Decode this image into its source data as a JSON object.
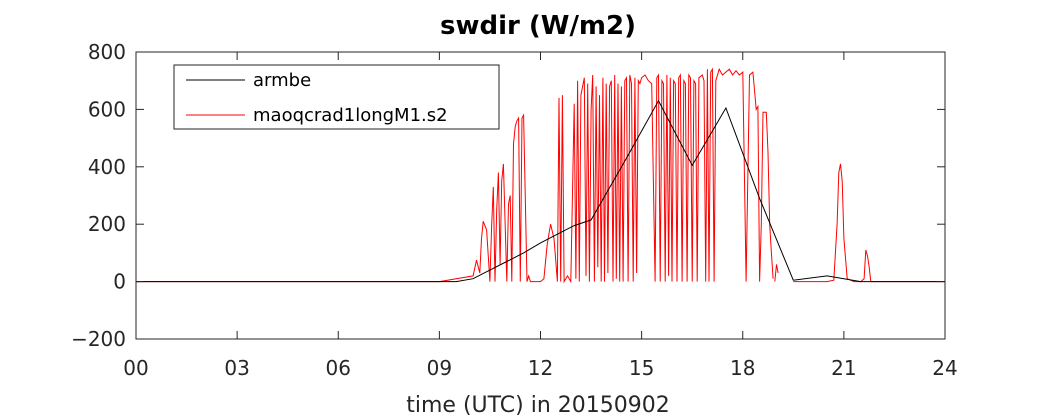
{
  "chart_data": {
    "type": "line",
    "title": "swdir  (W/m2)",
    "xlabel": "time (UTC) in 20150902",
    "ylabel": "",
    "xlim": [
      0,
      24
    ],
    "ylim": [
      -200,
      800
    ],
    "x_ticks": [
      0,
      3,
      6,
      9,
      12,
      15,
      18,
      21,
      24
    ],
    "x_tick_labels": [
      "00",
      "03",
      "06",
      "09",
      "12",
      "15",
      "18",
      "21",
      "24"
    ],
    "y_ticks": [
      -200,
      0,
      200,
      400,
      600,
      800
    ],
    "y_tick_labels": [
      "−200",
      "0",
      "200",
      "400",
      "600",
      "800"
    ],
    "grid": false,
    "legend_position": "top-left",
    "series": [
      {
        "name": "armbe",
        "color": "#000000",
        "x": [
          0,
          1,
          2,
          3,
          4,
          5,
          6,
          7,
          8,
          9,
          9.5,
          10.0,
          10.5,
          11.0,
          11.5,
          12.0,
          12.5,
          13.0,
          13.5,
          14.5,
          15.5,
          16.5,
          17.5,
          18.5,
          19.5,
          20.5,
          21.5,
          22.5,
          23.5,
          24
        ],
        "y": [
          0,
          0,
          0,
          0,
          0,
          0,
          0,
          0,
          0,
          0,
          0,
          10,
          40,
          70,
          100,
          135,
          165,
          195,
          215,
          420,
          630,
          405,
          605,
          290,
          5,
          20,
          0,
          0,
          0,
          0
        ]
      },
      {
        "name": "maoqcrad1longM1.s2",
        "color": "#ff0000",
        "segments": [
          {
            "x": [
              0,
              3,
              6,
              9,
              10.0,
              10.1,
              10.2,
              10.25,
              10.3,
              10.4,
              10.5,
              10.55,
              10.6,
              10.65,
              10.7,
              10.75,
              10.8,
              10.85,
              10.9,
              11.0,
              11.05,
              11.1,
              11.15,
              11.2,
              11.25,
              11.3,
              11.35,
              11.4,
              11.45,
              11.5,
              11.6,
              11.65,
              11.7,
              11.75,
              11.8,
              11.9,
              12.0,
              12.1,
              12.2,
              12.3,
              12.4,
              12.5,
              12.55,
              12.6,
              12.65,
              12.7,
              12.8,
              12.9,
              13.0,
              13.05,
              13.1,
              13.15,
              13.2,
              13.3,
              13.35,
              13.4,
              13.45,
              13.5,
              13.55,
              13.6,
              13.65,
              13.7,
              13.75,
              13.8,
              13.85,
              13.9,
              13.95,
              14.0,
              14.05,
              14.1,
              14.15,
              14.2,
              14.25,
              14.3,
              14.35,
              14.4,
              14.45,
              14.5,
              14.55,
              14.6,
              14.65,
              14.7,
              14.75,
              14.8,
              14.85,
              14.9,
              14.95,
              15.0,
              15.1,
              15.2,
              15.3,
              15.4,
              15.45,
              15.5,
              15.55,
              15.6,
              15.65,
              15.7,
              15.75,
              15.8,
              15.85,
              15.9,
              15.95,
              16.0,
              16.05,
              16.1,
              16.15,
              16.2,
              16.25,
              16.3,
              16.35,
              16.4,
              16.45,
              16.5,
              16.55,
              16.6,
              16.65,
              16.7,
              16.8,
              16.85,
              16.9,
              16.95,
              17.0,
              17.05,
              17.1,
              17.15,
              17.2,
              17.3,
              17.4,
              17.5,
              17.6,
              17.7,
              17.8,
              17.9,
              18.0,
              18.1,
              18.2,
              18.3,
              18.4,
              18.45,
              18.5,
              18.55,
              18.6,
              18.65,
              18.7,
              18.75,
              18.8,
              18.85,
              18.9
            ],
            "y": [
              0,
              0,
              0,
              0,
              20,
              75,
              30,
              150,
              210,
              180,
              0,
              190,
              330,
              0,
              250,
              380,
              60,
              350,
              410,
              0,
              270,
              300,
              0,
              480,
              540,
              560,
              570,
              0,
              570,
              580,
              0,
              20,
              0,
              0,
              0,
              0,
              0,
              10,
              130,
              200,
              150,
              0,
              640,
              0,
              650,
              0,
              20,
              0,
              620,
              10,
              700,
              0,
              650,
              710,
              20,
              690,
              0,
              600,
              720,
              0,
              680,
              50,
              650,
              0,
              710,
              0,
              690,
              30,
              680,
              700,
              0,
              720,
              10,
              690,
              0,
              680,
              0,
              700,
              710,
              0,
              720,
              690,
              0,
              710,
              30,
              700,
              690,
              710,
              720,
              700,
              690,
              0,
              710,
              720,
              0,
              700,
              690,
              0,
              720,
              20,
              710,
              0,
              700,
              690,
              0,
              710,
              720,
              0,
              700,
              690,
              0,
              720,
              710,
              0,
              700,
              690,
              0,
              710,
              720,
              700,
              0,
              740,
              0,
              730,
              740,
              0,
              700,
              740,
              720,
              730,
              740,
              720,
              735,
              720,
              730,
              0,
              720,
              730,
              600,
              610,
              0,
              200,
              590,
              590,
              590,
              450,
              200,
              100,
              10
            ]
          },
          {
            "x": [
              18.95,
              19.0,
              19.05
            ],
            "y": [
              0,
              60,
              30
            ]
          },
          {
            "x": [
              19.5,
              20.0,
              20.5,
              20.7,
              20.8,
              20.85,
              20.9,
              20.95,
              21.0,
              21.1,
              21.3,
              21.5,
              21.6,
              21.65,
              21.7,
              21.75,
              21.8,
              22.0,
              23.0,
              24
            ],
            "y": [
              0,
              0,
              0,
              5,
              200,
              380,
              410,
              350,
              150,
              10,
              0,
              0,
              10,
              110,
              90,
              50,
              0,
              0,
              0,
              0
            ]
          }
        ]
      }
    ]
  }
}
